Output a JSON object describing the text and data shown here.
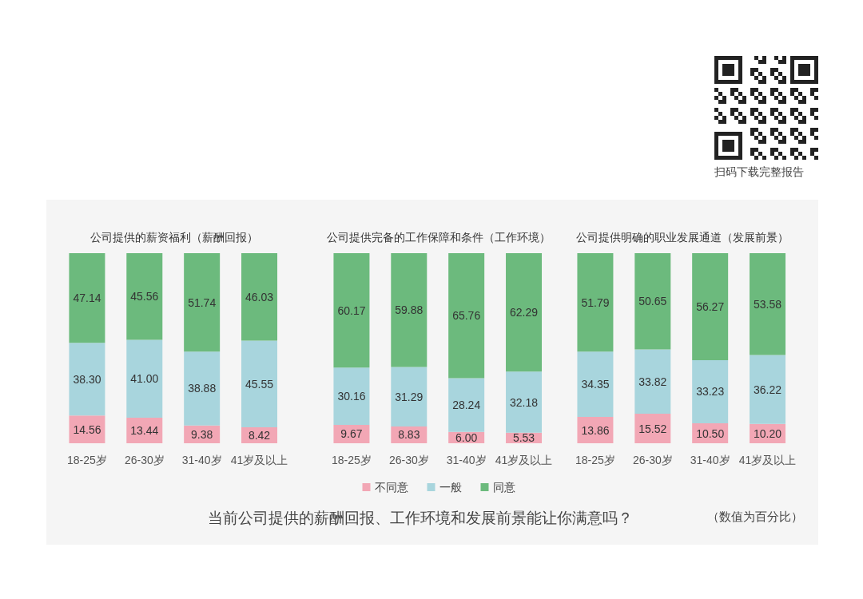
{
  "chart_data": [
    {
      "type": "bar",
      "title": "公司提供的薪资福利（薪酬回报）",
      "categories": [
        "18-25岁",
        "26-30岁",
        "31-40岁",
        "41岁及以上"
      ],
      "stacked": true,
      "legend": false,
      "series": [
        {
          "color": "#f2a7b5",
          "values": [
            14.56,
            13.44,
            9.38,
            8.42
          ],
          "value_labels": [
            "14.56",
            "13.44",
            "9.38",
            "8.42"
          ]
        },
        {
          "color": "#a8d5dd",
          "values": [
            38.3,
            41.0,
            38.88,
            45.55
          ],
          "value_labels": [
            "38.30",
            "41.00",
            "38.88",
            "45.55"
          ]
        },
        {
          "color": "#6cba7d",
          "values": [
            47.14,
            45.56,
            51.74,
            46.03
          ],
          "value_labels": [
            "47.14",
            "45.56",
            "51.74",
            "46.03"
          ]
        }
      ]
    },
    {
      "type": "bar",
      "title": "公司提供完备的工作保障和条件（工作环境）",
      "categories": [
        "18-25岁",
        "26-30岁",
        "31-40岁",
        "41岁及以上"
      ],
      "stacked": true,
      "legend": "bottom",
      "annotations": [
        "当前公司提供的薪酬回报、工作环境和发展前景能让你满意吗？",
        "（数值为百分比）",
        "扫码下载完整报告"
      ],
      "series": [
        {
          "name": "不同意",
          "color": "#f2a7b5",
          "values": [
            9.67,
            8.83,
            6.0,
            5.53
          ],
          "value_labels": [
            "9.67",
            "8.83",
            "6.00",
            "5.53"
          ]
        },
        {
          "name": "一般",
          "color": "#a8d5dd",
          "values": [
            30.16,
            31.29,
            28.24,
            32.18
          ],
          "value_labels": [
            "30.16",
            "31.29",
            "28.24",
            "32.18"
          ]
        },
        {
          "name": "同意",
          "color": "#6cba7d",
          "values": [
            60.17,
            59.88,
            65.76,
            62.29
          ],
          "value_labels": [
            "60.17",
            "59.88",
            "65.76",
            "62.29"
          ]
        }
      ]
    },
    {
      "type": "bar",
      "title": "公司提供明确的职业发展通道（发展前景）",
      "categories": [
        "18-25岁",
        "26-30岁",
        "31-40岁",
        "41岁及以上"
      ],
      "stacked": true,
      "legend": false,
      "series": [
        {
          "color": "#f2a7b5",
          "values": [
            13.86,
            15.52,
            10.5,
            10.2
          ],
          "value_labels": [
            "13.86",
            "15.52",
            "10.50",
            "10.20"
          ]
        },
        {
          "color": "#a8d5dd",
          "values": [
            34.35,
            33.82,
            33.23,
            36.22
          ],
          "value_labels": [
            "34.35",
            "33.82",
            "33.23",
            "36.22"
          ]
        },
        {
          "color": "#6cba7d",
          "values": [
            51.79,
            50.65,
            56.27,
            53.58
          ],
          "value_labels": [
            "51.79",
            "50.65",
            "56.27",
            "53.58"
          ]
        }
      ]
    }
  ]
}
